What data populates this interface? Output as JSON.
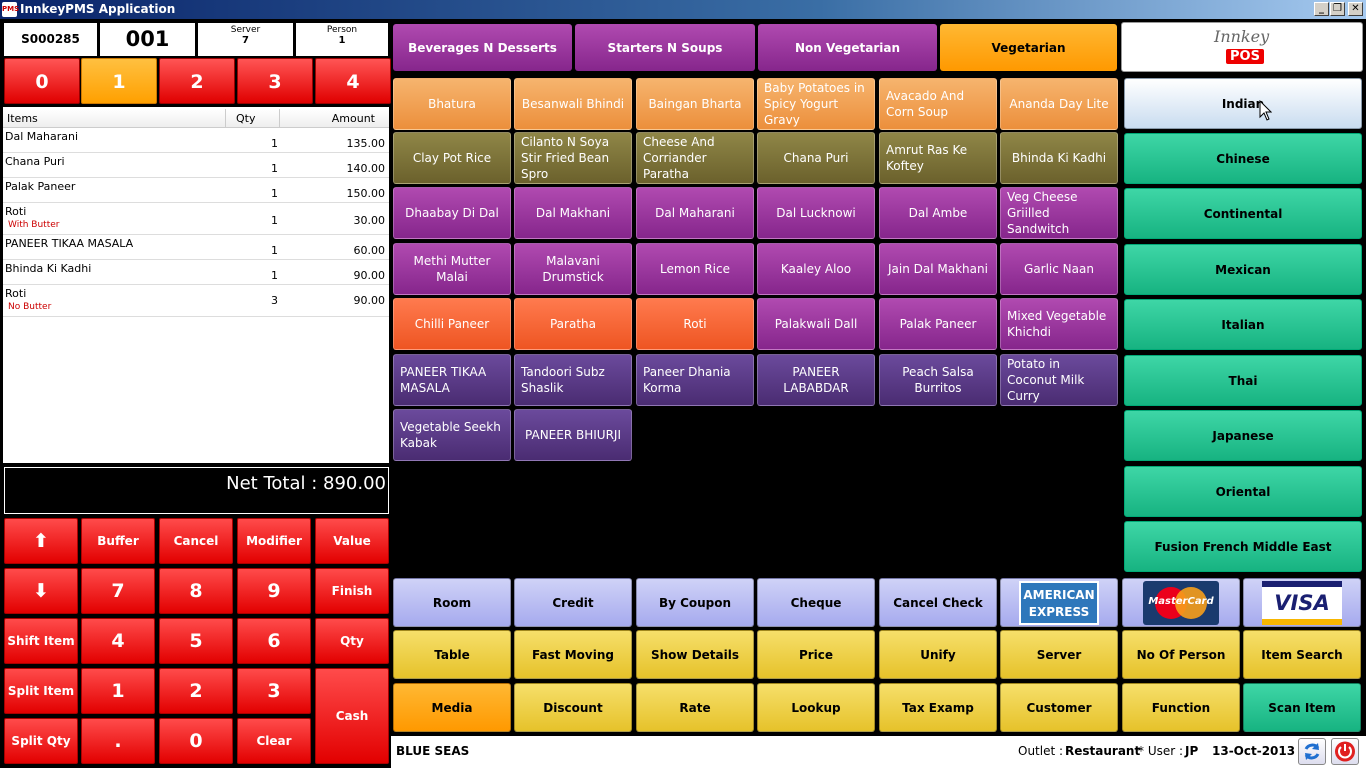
{
  "app_title": "InnkeyPMS Application",
  "window_controls": {
    "minimize": "_",
    "maximize": "❐",
    "close": "✕"
  },
  "header": {
    "order_no": "S000285",
    "table_no": "001",
    "server_label": "Server",
    "server_value": "7",
    "person_label": "Person",
    "person_value": "1"
  },
  "table_tabs": [
    "0",
    "1",
    "2",
    "3",
    "4"
  ],
  "order_columns": {
    "items": "Items",
    "qty": "Qty",
    "amount": "Amount"
  },
  "order_items": [
    {
      "name": "Dal Maharani",
      "modifier": "",
      "qty": "1",
      "amount": "135.00"
    },
    {
      "name": "Chana Puri",
      "modifier": "",
      "qty": "1",
      "amount": "140.00"
    },
    {
      "name": "Palak Paneer",
      "modifier": "",
      "qty": "1",
      "amount": "150.00"
    },
    {
      "name": "Roti",
      "modifier": "With Butter",
      "qty": "1",
      "amount": "30.00"
    },
    {
      "name": "PANEER TIKAA MASALA",
      "modifier": "",
      "qty": "1",
      "amount": "60.00"
    },
    {
      "name": "Bhinda Ki Kadhi",
      "modifier": "",
      "qty": "1",
      "amount": "90.00"
    },
    {
      "name": "Roti",
      "modifier": "No Butter",
      "qty": "3",
      "amount": "90.00"
    }
  ],
  "net_total": "Net Total : 890.00",
  "keypad": {
    "up": "⬆",
    "buffer": "Buffer",
    "cancel": "Cancel",
    "modifier": "Modifier",
    "value": "Value",
    "down": "⬇",
    "k7": "7",
    "k8": "8",
    "k9": "9",
    "finish": "Finish",
    "shift_item": "Shift Item",
    "k4": "4",
    "k5": "5",
    "k6": "6",
    "qty": "Qty",
    "split_item": "Split Item",
    "k1": "1",
    "k2": "2",
    "k3": "3",
    "cash": "Cash",
    "split_qty": "Split Qty",
    "dot": ".",
    "k0": "0",
    "clear": "Clear"
  },
  "categories": [
    "Beverages N Desserts",
    "Starters N Soups",
    "Non Vegetarian",
    "Vegetarian"
  ],
  "menu_items": [
    "Bhatura",
    "Besanwali Bhindi",
    "Baingan Bharta",
    "Baby Potatoes in Spicy Yogurt Gravy",
    "Avacado And Corn Soup",
    "Ananda Day Lite",
    "Clay Pot Rice",
    "Cilanto N Soya Stir Fried Bean Spro",
    "Cheese And Corriander Paratha",
    "Chana Puri",
    "Amrut Ras Ke Koftey",
    "Bhinda Ki Kadhi",
    "Dhaabay Di Dal",
    "Dal Makhani",
    "Dal Maharani",
    "Dal Lucknowi",
    "Dal Ambe",
    "Veg Cheese Griilled Sandwitch",
    "Methi Mutter Malai",
    "Malavani Drumstick",
    "Lemon Rice",
    "Kaaley Aloo",
    "Jain Dal Makhani",
    "Garlic Naan",
    "Chilli Paneer",
    "Paratha",
    "Roti",
    "Palakwali Dall",
    "Palak Paneer",
    "Mixed Vegetable Khichdi",
    "PANEER TIKAA MASALA",
    "Tandoori Subz Shaslik",
    "Paneer Dhania Korma",
    "PANEER LABABDAR",
    "Peach Salsa Burritos",
    "Potato in Coconut Milk Curry",
    "Vegetable Seekh Kabak",
    "PANEER BHIURJI"
  ],
  "logo": {
    "line1": "Innkey",
    "line2": "POS"
  },
  "cuisines": [
    "Indian",
    "Chinese",
    "Continental",
    "Mexican",
    "Italian",
    "Thai",
    "Japanese",
    "Oriental",
    "Fusion French Middle East"
  ],
  "payments": [
    "Room",
    "Credit",
    "By Coupon",
    "Cheque",
    "Cancel Check"
  ],
  "cards": {
    "amex1": "AMERICAN",
    "amex2": "EXPRESS",
    "mastercard": "MasterCard",
    "visa": "VISA"
  },
  "functions_row1": [
    "Table",
    "Fast Moving",
    "Show Details",
    "Price",
    "Unify",
    "Server",
    "No Of Person",
    "Item Search"
  ],
  "functions_row2": [
    "Media",
    "Discount",
    "Rate",
    "Lookup",
    "Tax Examp",
    "Customer",
    "Function",
    "Scan Item"
  ],
  "status": {
    "property": "BLUE SEAS",
    "outlet_label": "Outlet :",
    "outlet": "Restaurant",
    "user_label": "* User :",
    "user": "JP",
    "date": "13-Oct-2013"
  },
  "colors": {
    "red": "#e00000",
    "orange": "#ffa000",
    "teal": "#17b381",
    "yellow": "#e6c22a",
    "lavender": "#a6aaee"
  }
}
